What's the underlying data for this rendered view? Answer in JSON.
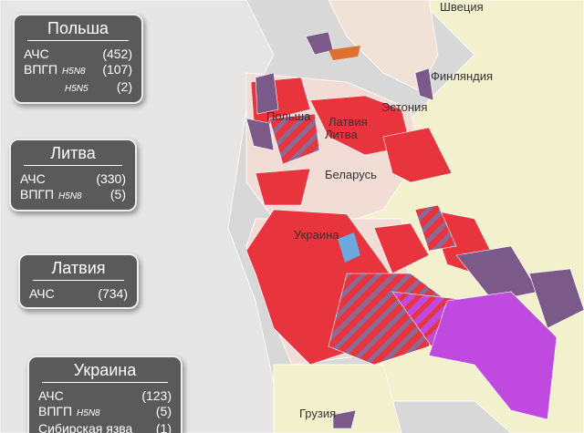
{
  "map_labels": [
    "Швеция",
    "Финляндия",
    "Польша",
    "Латвия",
    "Эстония",
    "Литва",
    "Беларусь",
    "Украина",
    "Грузия"
  ],
  "boxes": [
    {
      "title": "Польша",
      "rows": [
        {
          "label": "АЧС",
          "count": "(452)"
        },
        {
          "label": "ВПГП",
          "subtype": "H5N8",
          "count": "(107)"
        },
        {
          "subtype": "H5N5",
          "count": "(2)"
        }
      ]
    },
    {
      "title": "Литва",
      "rows": [
        {
          "label": "АЧС",
          "count": "(330)"
        },
        {
          "label": "ВПГП",
          "subtype": "H5N8",
          "count": "(5)"
        }
      ]
    },
    {
      "title": "Латвия",
      "rows": [
        {
          "label": "АЧС",
          "count": "(734)"
        }
      ]
    },
    {
      "title": "Украина",
      "rows": [
        {
          "label": "АЧС",
          "count": "(123)"
        },
        {
          "label": "ВПГП",
          "subtype": "H5N8",
          "count": "(5)"
        },
        {
          "label": "Сибирская язва",
          "count": "(1)"
        }
      ]
    }
  ]
}
